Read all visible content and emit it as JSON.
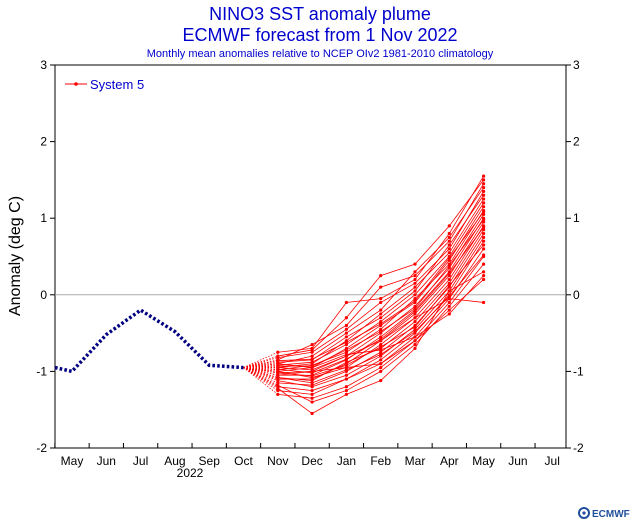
{
  "chart_data": {
    "type": "line",
    "title": "NINO3 SST anomaly plume",
    "subtitle": "ECMWF forecast from 1 Nov 2022",
    "caption": "Monthly mean anomalies relative to NCEP OIv2 1981-2010 climatology",
    "ylabel": "Anomaly (deg C)",
    "xlabel": "",
    "year_label": "2022",
    "ylim": [
      -2,
      3
    ],
    "y_ticks": [
      -2,
      -1,
      0,
      1,
      2,
      3
    ],
    "x_ticks": [
      "May",
      "Jun",
      "Jul",
      "Aug",
      "Sep",
      "Oct",
      "Nov",
      "Dec",
      "Jan",
      "Feb",
      "Mar",
      "Apr",
      "May",
      "Jun",
      "Jul"
    ],
    "legend": {
      "label": "System 5",
      "position": "top-left"
    },
    "observed": {
      "color": "#000080",
      "x": [
        "Apr-end",
        "May",
        "Jun",
        "Jul",
        "Aug",
        "Sep",
        "Oct"
      ],
      "values": [
        -0.95,
        -1.0,
        -0.52,
        -0.2,
        -0.48,
        -0.92,
        -0.95
      ]
    },
    "forecast": {
      "color": "#ff0000",
      "start_value": -0.95,
      "months": [
        "Nov",
        "Dec",
        "Jan",
        "Feb",
        "Mar",
        "Apr",
        "May"
      ],
      "members": [
        [
          -0.75,
          -0.7,
          -0.1,
          -0.05,
          0.2,
          0.8,
          1.55
        ],
        [
          -0.8,
          -0.72,
          -0.3,
          0.25,
          0.4,
          0.9,
          1.5
        ],
        [
          -0.85,
          -0.65,
          -0.4,
          0.1,
          0.25,
          0.7,
          1.45
        ],
        [
          -0.9,
          -0.8,
          -0.5,
          -0.2,
          0.3,
          0.75,
          1.4
        ],
        [
          -0.82,
          -0.75,
          -0.45,
          -0.1,
          0.15,
          0.6,
          1.35
        ],
        [
          -0.88,
          -0.85,
          -0.55,
          -0.3,
          0.05,
          0.65,
          1.3
        ],
        [
          -0.95,
          -0.9,
          -0.6,
          -0.25,
          0.1,
          0.55,
          1.25
        ],
        [
          -0.92,
          -0.88,
          -0.65,
          -0.35,
          0.0,
          0.5,
          1.2
        ],
        [
          -1.0,
          -0.95,
          -0.7,
          -0.4,
          -0.1,
          0.45,
          1.15
        ],
        [
          -0.98,
          -0.92,
          -0.75,
          -0.45,
          -0.05,
          0.4,
          1.1
        ],
        [
          -1.02,
          -1.0,
          -0.8,
          -0.5,
          -0.15,
          0.35,
          1.05
        ],
        [
          -1.05,
          -1.05,
          -0.85,
          -0.55,
          -0.2,
          0.3,
          1.0
        ],
        [
          -1.1,
          -1.1,
          -0.9,
          -0.6,
          -0.25,
          0.25,
          0.95
        ],
        [
          -1.0,
          -1.08,
          -0.95,
          -0.65,
          -0.3,
          0.2,
          0.9
        ],
        [
          -1.08,
          -1.12,
          -0.88,
          -0.7,
          -0.35,
          0.15,
          0.85
        ],
        [
          -1.15,
          -1.18,
          -1.0,
          -0.75,
          -0.4,
          0.1,
          0.8
        ],
        [
          -1.12,
          -1.2,
          -1.05,
          -0.8,
          -0.45,
          0.05,
          0.75
        ],
        [
          -1.2,
          -1.25,
          -1.1,
          -0.85,
          -0.5,
          0.0,
          0.7
        ],
        [
          -1.25,
          -1.3,
          -1.1,
          -0.9,
          -0.55,
          -0.05,
          0.6
        ],
        [
          -1.3,
          -1.35,
          -1.2,
          -0.95,
          -0.6,
          -0.1,
          0.5
        ],
        [
          -1.18,
          -1.4,
          -1.25,
          -1.0,
          -0.65,
          -0.15,
          0.4
        ],
        [
          -1.22,
          -1.55,
          -1.3,
          -1.12,
          -0.7,
          0.05,
          0.3
        ],
        [
          -1.05,
          -1.0,
          -0.95,
          -0.9,
          -0.6,
          -0.2,
          0.2
        ],
        [
          -0.95,
          -0.98,
          -0.8,
          -0.6,
          -0.3,
          -0.05,
          -0.1
        ],
        [
          -0.9,
          -0.95,
          -0.78,
          -0.72,
          -0.55,
          -0.25,
          0.25
        ],
        [
          -1.02,
          -1.06,
          -0.92,
          -0.68,
          -0.42,
          0.12,
          0.65
        ],
        [
          -0.86,
          -0.84,
          -0.62,
          -0.38,
          -0.08,
          0.48,
          1.08
        ],
        [
          -0.97,
          -1.02,
          -0.84,
          -0.58,
          -0.22,
          0.28,
          0.88
        ],
        [
          -1.08,
          -1.15,
          -0.98,
          -0.78,
          -0.48,
          -0.02,
          0.52
        ],
        [
          -0.93,
          -0.93,
          -0.72,
          -0.48,
          -0.18,
          0.38,
          0.98
        ]
      ]
    }
  },
  "logo": {
    "text": "ECMWF",
    "color": "#1f4f9c"
  }
}
